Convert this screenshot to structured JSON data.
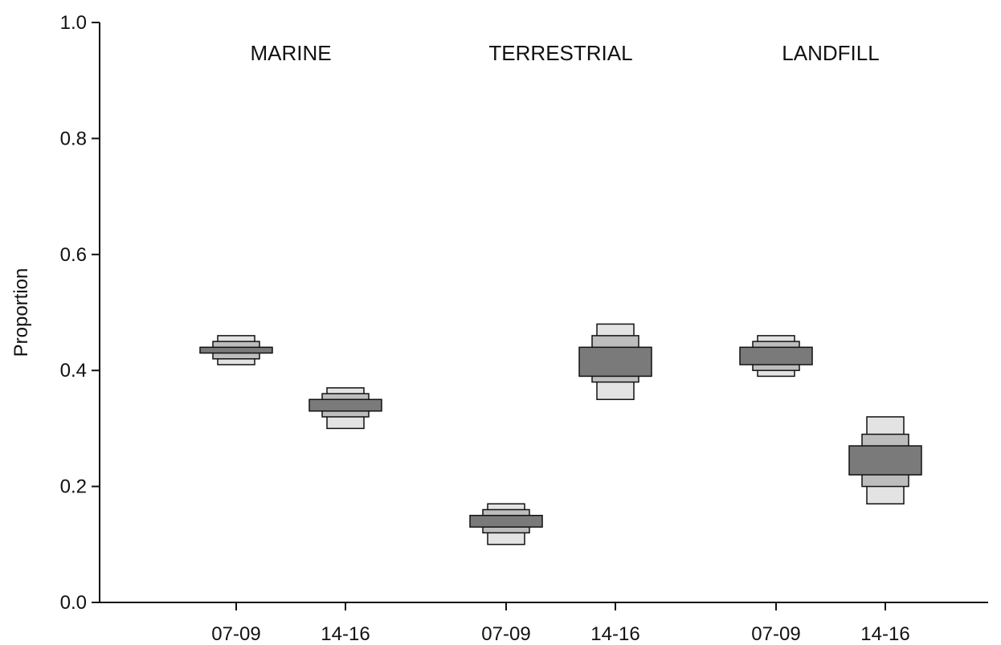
{
  "chart_data": {
    "type": "interval",
    "ylabel": "Proportion",
    "ylim": [
      0,
      1
    ],
    "yticks": [
      "0.0",
      "0.2",
      "0.4",
      "0.6",
      "0.8",
      "1.0"
    ],
    "grid": false,
    "legend": "none",
    "colors": {
      "outer": "#e3e3e3",
      "middle": "#bdbdbd",
      "inner": "#7a7a7a",
      "stroke": "#111111"
    },
    "groups": [
      {
        "label": "MARINE",
        "periods": [
          {
            "label": "07-09",
            "outer": [
              0.41,
              0.46
            ],
            "middle": [
              0.42,
              0.45
            ],
            "inner": [
              0.43,
              0.44
            ]
          },
          {
            "label": "14-16",
            "outer": [
              0.3,
              0.37
            ],
            "middle": [
              0.32,
              0.36
            ],
            "inner": [
              0.33,
              0.35
            ]
          }
        ]
      },
      {
        "label": "TERRESTRIAL",
        "periods": [
          {
            "label": "07-09",
            "outer": [
              0.1,
              0.17
            ],
            "middle": [
              0.12,
              0.16
            ],
            "inner": [
              0.13,
              0.15
            ]
          },
          {
            "label": "14-16",
            "outer": [
              0.35,
              0.48
            ],
            "middle": [
              0.38,
              0.46
            ],
            "inner": [
              0.39,
              0.44
            ]
          }
        ]
      },
      {
        "label": "LANDFILL",
        "periods": [
          {
            "label": "07-09",
            "outer": [
              0.39,
              0.46
            ],
            "middle": [
              0.4,
              0.45
            ],
            "inner": [
              0.41,
              0.44
            ]
          },
          {
            "label": "14-16",
            "outer": [
              0.17,
              0.32
            ],
            "middle": [
              0.2,
              0.29
            ],
            "inner": [
              0.22,
              0.27
            ]
          }
        ]
      }
    ]
  }
}
